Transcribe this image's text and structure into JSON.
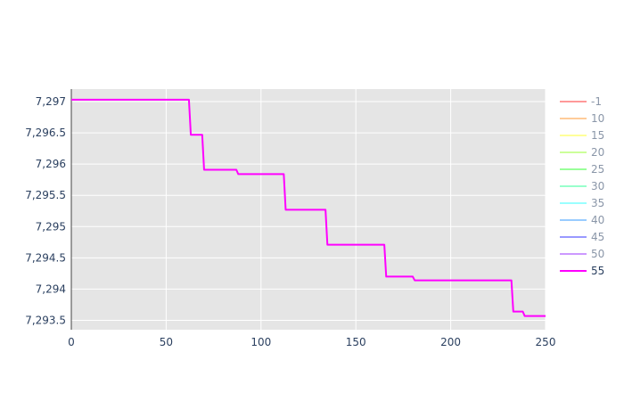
{
  "chart_data": {
    "type": "line",
    "title": "",
    "xlabel": "",
    "ylabel": "",
    "xlim": [
      0,
      250
    ],
    "ylim": [
      7293.35,
      7297.2
    ],
    "x_ticks": [
      0,
      50,
      100,
      150,
      200,
      250
    ],
    "x_tick_labels": [
      "0",
      "50",
      "100",
      "150",
      "200",
      "250"
    ],
    "y_ticks": [
      7293.5,
      7294,
      7294.5,
      7295,
      7295.5,
      7296,
      7296.5,
      7297
    ],
    "y_tick_labels": [
      "7,293.5",
      "7,294",
      "7,294.5",
      "7,295",
      "7,295.5",
      "7,296",
      "7,296.5",
      "7,297"
    ],
    "grid": true,
    "plot_background": "#e5e5e5",
    "grid_color": "#ffffff",
    "legend_position": "right",
    "series": [
      {
        "name": "-1",
        "color": "#ff9999",
        "x": [],
        "y": []
      },
      {
        "name": "10",
        "color": "#ffcc99",
        "x": [],
        "y": []
      },
      {
        "name": "15",
        "color": "#ffff99",
        "x": [],
        "y": []
      },
      {
        "name": "20",
        "color": "#ccff99",
        "x": [],
        "y": []
      },
      {
        "name": "25",
        "color": "#99ff99",
        "x": [],
        "y": []
      },
      {
        "name": "30",
        "color": "#99ffcc",
        "x": [],
        "y": []
      },
      {
        "name": "35",
        "color": "#99ffff",
        "x": [],
        "y": []
      },
      {
        "name": "40",
        "color": "#99ccff",
        "x": [],
        "y": []
      },
      {
        "name": "45",
        "color": "#9999ff",
        "x": [],
        "y": []
      },
      {
        "name": "50",
        "color": "#cc99ff",
        "x": [],
        "y": []
      },
      {
        "name": "55",
        "color": "#ff00ff",
        "x": [
          0,
          62,
          63,
          69,
          70,
          87,
          88,
          112,
          113,
          134,
          135,
          165,
          166,
          180,
          181,
          232,
          233,
          238,
          239,
          250
        ],
        "y": [
          7297.03,
          7297.03,
          7296.47,
          7296.47,
          7295.91,
          7295.91,
          7295.84,
          7295.84,
          7295.27,
          7295.27,
          7294.71,
          7294.71,
          7294.2,
          7294.2,
          7294.14,
          7294.14,
          7293.64,
          7293.64,
          7293.57,
          7293.57
        ]
      }
    ],
    "active_series": "55"
  }
}
